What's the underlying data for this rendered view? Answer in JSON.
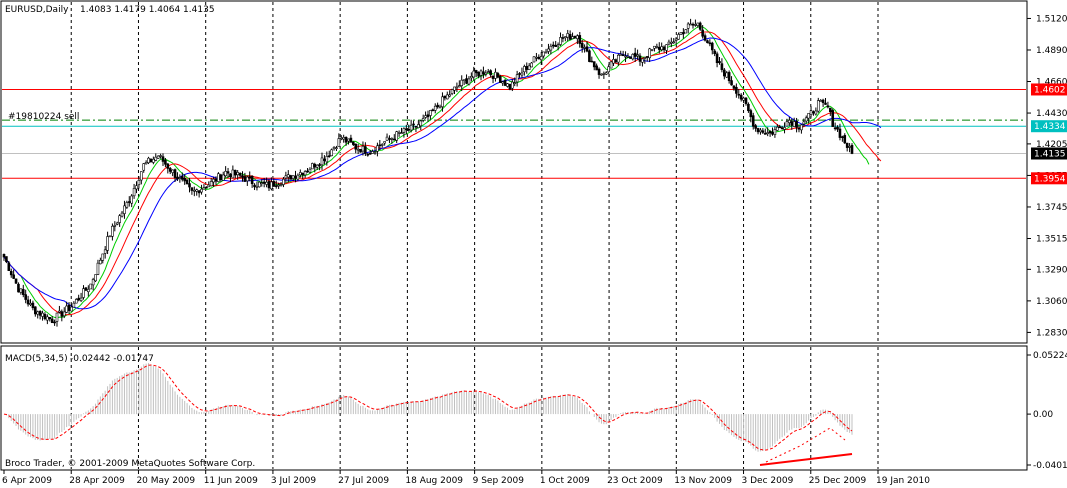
{
  "chart_data": {
    "type": "candlestick",
    "header": {
      "symbol_label": "EURUSD,Daily",
      "ohlc_label": "1.4083 1.4179 1.4064 1.4135"
    },
    "copyright": "Broco Trader, © 2001-2009 MetaQuotes Software Corp.",
    "price_axis": {
      "ticks": [
        1.512,
        1.489,
        1.466,
        1.443,
        1.4205,
        1.3975,
        1.3745,
        1.3515,
        1.329,
        1.306,
        1.283
      ],
      "tick_labels": [
        "1.5120",
        "1.4890",
        "1.4660",
        "1.4430",
        "1.4205",
        "1.3975",
        "1.3745",
        "1.3515",
        "1.3290",
        "1.3060",
        "1.2830"
      ],
      "range": [
        1.276,
        1.524
      ]
    },
    "dates": [
      "6 Apr 2009",
      "28 Apr 2009",
      "20 May 2009",
      "11 Jun 2009",
      "3 Jul 2009",
      "27 Jul 2009",
      "18 Aug 2009",
      "9 Sep 2009",
      "1 Oct 2009",
      "23 Oct 2009",
      "13 Nov 2009",
      "3 Dec 2009",
      "25 Dec 2009",
      "19 Jan 2010"
    ],
    "price_path": [
      [
        0,
        1.338
      ],
      [
        6,
        1.315
      ],
      [
        12,
        1.3
      ],
      [
        20,
        1.292
      ],
      [
        28,
        1.302
      ],
      [
        36,
        1.318
      ],
      [
        44,
        1.355
      ],
      [
        52,
        1.38
      ],
      [
        58,
        1.405
      ],
      [
        64,
        1.412
      ],
      [
        70,
        1.4
      ],
      [
        78,
        1.385
      ],
      [
        86,
        1.392
      ],
      [
        92,
        1.4
      ],
      [
        98,
        1.397
      ],
      [
        104,
        1.392
      ],
      [
        110,
        1.39
      ],
      [
        118,
        1.396
      ],
      [
        126,
        1.402
      ],
      [
        134,
        1.412
      ],
      [
        140,
        1.425
      ],
      [
        146,
        1.418
      ],
      [
        152,
        1.415
      ],
      [
        158,
        1.422
      ],
      [
        164,
        1.428
      ],
      [
        170,
        1.432
      ],
      [
        176,
        1.44
      ],
      [
        182,
        1.452
      ],
      [
        188,
        1.462
      ],
      [
        194,
        1.47
      ],
      [
        200,
        1.474
      ],
      [
        206,
        1.468
      ],
      [
        210,
        1.462
      ],
      [
        216,
        1.475
      ],
      [
        222,
        1.485
      ],
      [
        228,
        1.493
      ],
      [
        232,
        1.498
      ],
      [
        238,
        1.5
      ],
      [
        242,
        1.486
      ],
      [
        248,
        1.47
      ],
      [
        252,
        1.478
      ],
      [
        258,
        1.487
      ],
      [
        264,
        1.482
      ],
      [
        270,
        1.49
      ],
      [
        276,
        1.492
      ],
      [
        280,
        1.5
      ],
      [
        284,
        1.506
      ],
      [
        288,
        1.508
      ],
      [
        292,
        1.495
      ],
      [
        296,
        1.48
      ],
      [
        300,
        1.47
      ],
      [
        304,
        1.46
      ],
      [
        308,
        1.448
      ],
      [
        312,
        1.432
      ],
      [
        318,
        1.428
      ],
      [
        322,
        1.433
      ],
      [
        326,
        1.438
      ],
      [
        330,
        1.434
      ],
      [
        334,
        1.44
      ],
      [
        338,
        1.45
      ],
      [
        342,
        1.447
      ],
      [
        344,
        1.436
      ],
      [
        348,
        1.425
      ],
      [
        352,
        1.413
      ]
    ],
    "moving_averages": [
      {
        "name": "fast",
        "color": "#00cc00",
        "period": 8
      },
      {
        "name": "medium",
        "color": "#ff0000",
        "period": 15
      },
      {
        "name": "slow",
        "color": "#0000ff",
        "period": 26
      }
    ],
    "horizontal_lines": [
      {
        "price": 1.4602,
        "color": "#ff0000",
        "style": "solid",
        "tag": "1.4602",
        "tag_bg": "#ff0000",
        "tag_fg": "#ffffff"
      },
      {
        "price": 1.4334,
        "color": "#00c0c0",
        "style": "solid",
        "tag": "1.4334",
        "tag_bg": "#00c0c0",
        "tag_fg": "#ffffff"
      },
      {
        "price": 1.3954,
        "color": "#ff0000",
        "style": "solid",
        "tag": "1.3954",
        "tag_bg": "#ff0000",
        "tag_fg": "#ffffff"
      },
      {
        "price": 1.4135,
        "color": "#c0c0c0",
        "style": "solid",
        "tag": "1.4135",
        "tag_bg": "#000000",
        "tag_fg": "#ffffff"
      },
      {
        "price": 1.4378,
        "color": "#008000",
        "style": "dashdot",
        "tag": ""
      }
    ],
    "order_label": "#19810224 sell",
    "macd": {
      "label": "MACD(5,34,5)",
      "values_label": "-0.02442 -0.01747",
      "axis_ticks": [
        0.05224,
        0.0,
        -0.04015
      ],
      "axis_labels": [
        "0.05224",
        "0.00",
        "-0.04015"
      ],
      "range": [
        -0.045,
        0.055
      ],
      "histogram_color": "#c0c0c0",
      "signal_color": "#ff0000",
      "divergence_line_color": "#ff0000"
    }
  }
}
